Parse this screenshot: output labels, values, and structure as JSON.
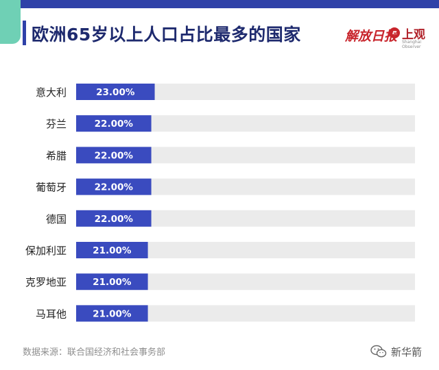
{
  "header": {
    "title": "欧洲65岁以上人口占比最多的国家",
    "brand_primary": "解放日报",
    "brand_secondary": "上观",
    "brand_secondary_sub": "Shanghai Observer"
  },
  "footer": {
    "source": "数据来源：联合国经济和社会事务部",
    "watermark": "新华箭"
  },
  "colors": {
    "bar": "#3a4bbf",
    "track": "#ebebeb",
    "accent": "#2f41a8",
    "brand_red": "#c8252c"
  },
  "chart_data": {
    "type": "bar",
    "orientation": "horizontal",
    "title": "欧洲65岁以上人口占比最多的国家",
    "categories": [
      "意大利",
      "芬兰",
      "希腊",
      "葡萄牙",
      "德国",
      "保加利亚",
      "克罗地亚",
      "马耳他"
    ],
    "values": [
      23.0,
      22.0,
      22.0,
      22.0,
      22.0,
      21.0,
      21.0,
      21.0
    ],
    "data_labels": [
      "23.00%",
      "22.00%",
      "22.00%",
      "22.00%",
      "22.00%",
      "21.00%",
      "21.00%",
      "21.00%"
    ],
    "unit": "%",
    "xlim": [
      0,
      100
    ],
    "grid": false,
    "legend": "none"
  }
}
